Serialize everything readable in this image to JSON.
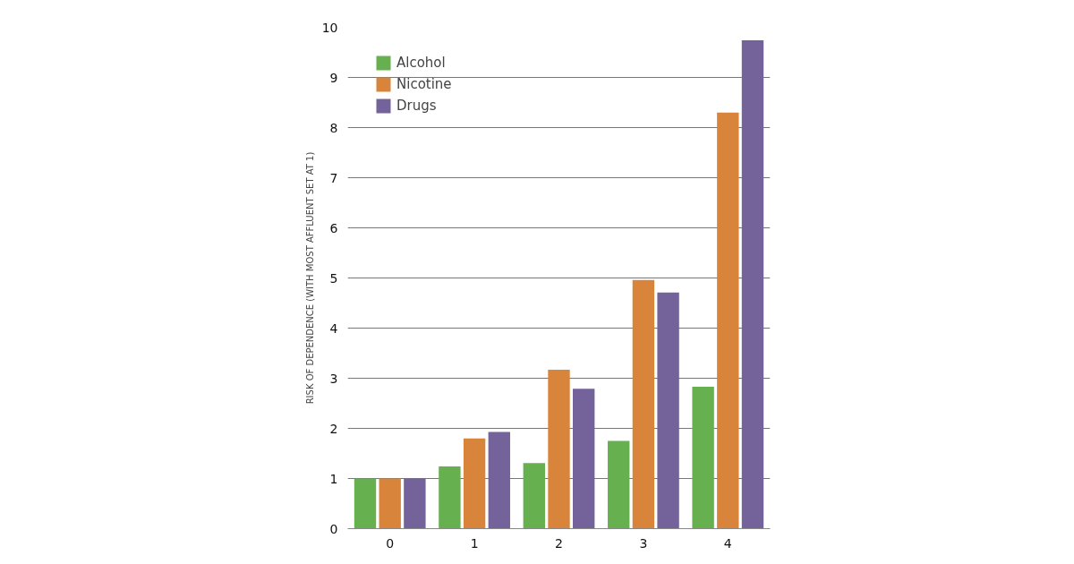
{
  "chart_data": {
    "type": "bar",
    "ylabel": "RISK OF DEPENDENCE (WITH MOST AFFLUENT SET AT 1)",
    "categories": [
      "0",
      "1",
      "2",
      "3",
      "4"
    ],
    "series": [
      {
        "name": "Alcohol",
        "color": "#66b04f",
        "values": [
          1,
          1.24,
          1.31,
          1.75,
          2.83
        ]
      },
      {
        "name": "Nicotine",
        "color": "#d8843a",
        "values": [
          1,
          1.8,
          3.17,
          4.96,
          8.3
        ]
      },
      {
        "name": "Drugs",
        "color": "#74629a",
        "values": [
          1,
          1.93,
          2.79,
          4.71,
          9.74
        ]
      }
    ],
    "ylim": [
      0,
      10
    ],
    "yticks": [
      0,
      1,
      2,
      3,
      4,
      5,
      6,
      7,
      8,
      9,
      10
    ],
    "grid": "y",
    "legend": "top left"
  }
}
